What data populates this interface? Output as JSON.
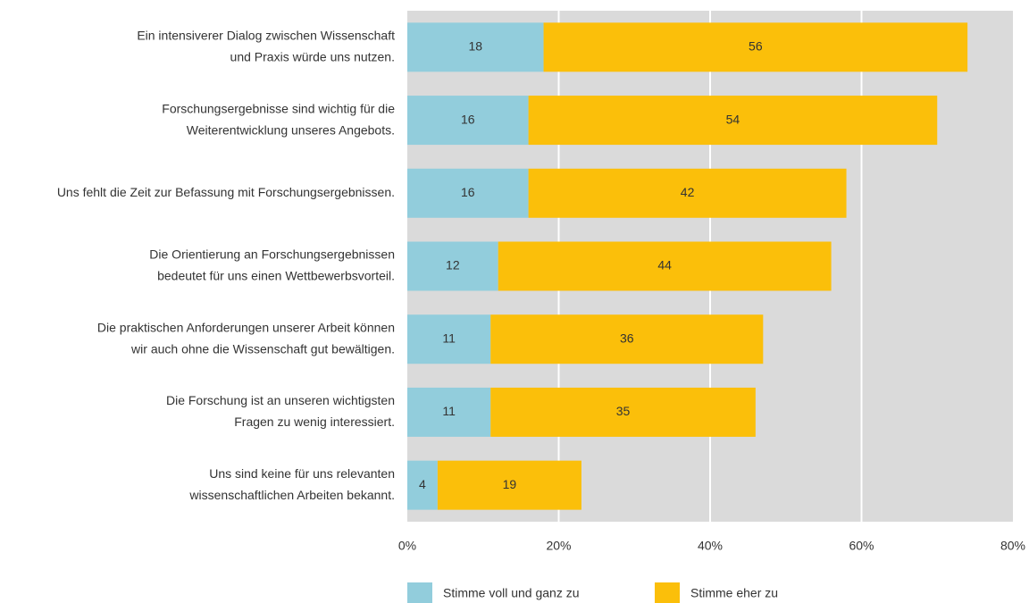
{
  "chart_data": {
    "type": "stacked-bar-horizontal",
    "categories": [
      [
        "Ein intensiverer Dialog zwischen Wissenschaft",
        "und Praxis würde uns nutzen."
      ],
      [
        "Forschungsergebnisse sind wichtig für die",
        "Weiterentwicklung unseres Angebots."
      ],
      [
        "Uns fehlt die Zeit zur Befassung mit Forschungsergebnissen."
      ],
      [
        "Die Orientierung an Forschungsergebnissen",
        "bedeutet für uns einen Wettbewerbsvorteil."
      ],
      [
        "Die praktischen Anforderungen unserer Arbeit können",
        "wir auch ohne die Wissenschaft gut bewältigen."
      ],
      [
        "Die Forschung ist an unseren wichtigsten",
        "Fragen zu wenig interessiert."
      ],
      [
        "Uns sind keine für uns relevanten",
        "wissenschaftlichen Arbeiten bekannt."
      ]
    ],
    "series": [
      {
        "name": "Stimme voll und ganz zu",
        "color": "#92cddc",
        "values": [
          18,
          16,
          16,
          12,
          11,
          11,
          4
        ]
      },
      {
        "name": "Stimme eher zu",
        "color": "#fbbf0a",
        "values": [
          56,
          54,
          42,
          44,
          36,
          35,
          19
        ]
      }
    ],
    "xlim": [
      0,
      80
    ],
    "xticks": [
      {
        "value": 0,
        "label": "0%"
      },
      {
        "value": 20,
        "label": "20%"
      },
      {
        "value": 40,
        "label": "40%"
      },
      {
        "value": 60,
        "label": "60%"
      },
      {
        "value": 80,
        "label": "80%"
      }
    ],
    "grid": true,
    "legend": "bottom"
  }
}
